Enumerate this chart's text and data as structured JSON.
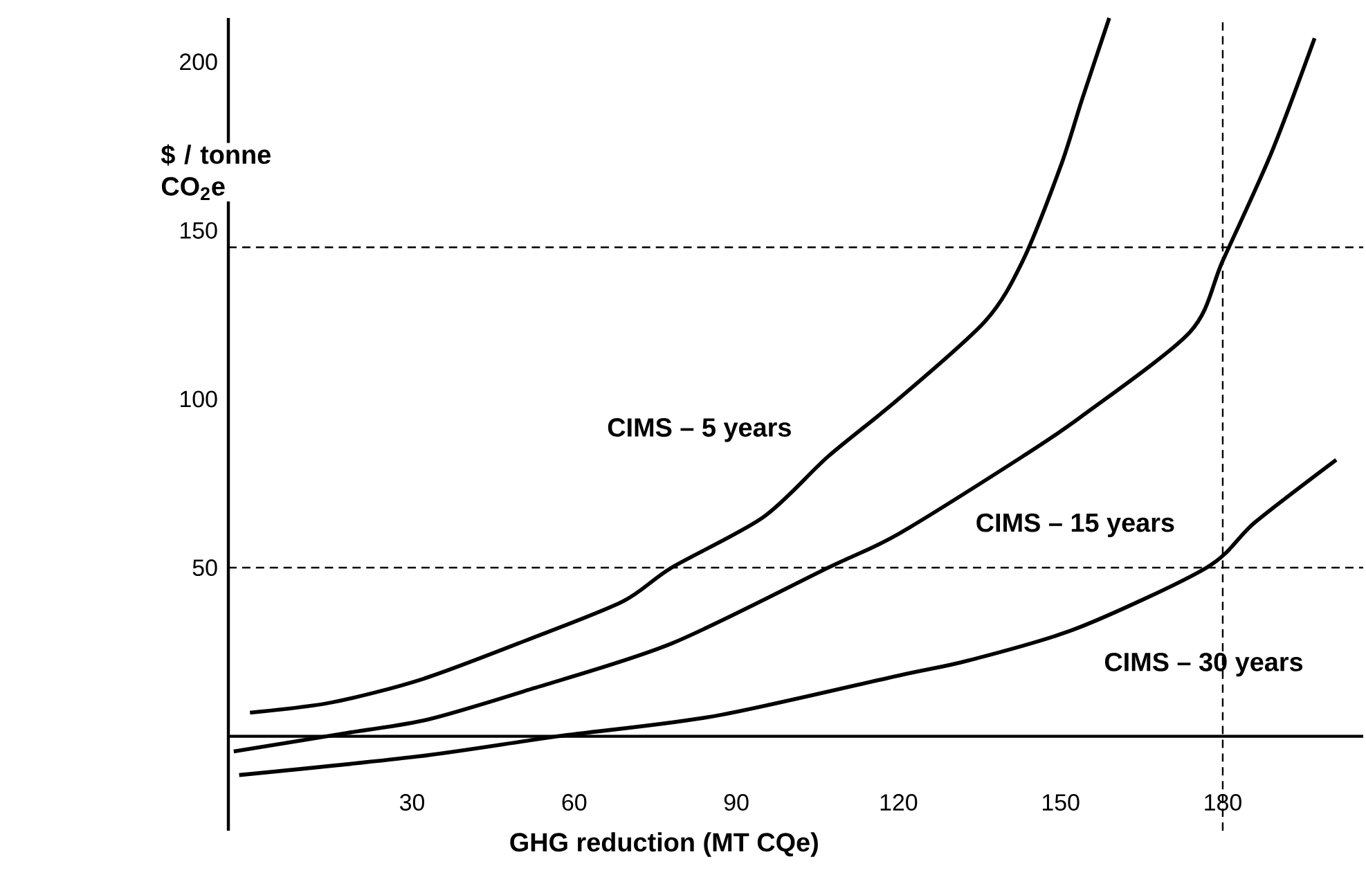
{
  "chart_data": {
    "type": "line",
    "xlabel": "GHG reduction (MT CQe)",
    "ylabel": "$ / tonne CO$_{2}$e",
    "xlim": [
      -4,
      206
    ],
    "ylim": [
      -28,
      213
    ],
    "xticks": [
      30,
      60,
      90,
      120,
      150,
      180
    ],
    "yticks": [
      50,
      100,
      150,
      200
    ],
    "marker": "none",
    "line_style": "solid",
    "series": [
      {
        "name": "CIMS – 5 years",
        "color": "#000000",
        "x": [
          0,
          15,
          32,
          52,
          69,
          78,
          95,
          107,
          120,
          136,
          143,
          150,
          154,
          159
        ],
        "values": [
          7,
          10,
          17,
          29,
          40,
          50,
          65,
          83,
          100,
          123,
          141,
          169,
          189,
          213
        ]
      },
      {
        "name": "CIMS – 15 years",
        "color": "#000000",
        "x": [
          -3,
          18,
          33,
          52,
          78,
          107,
          120,
          143,
          154,
          174,
          180,
          189,
          197
        ],
        "values": [
          -4.5,
          1,
          5,
          14,
          27.5,
          50,
          60,
          83,
          95,
          120,
          141,
          173,
          207
        ]
      },
      {
        "name": "CIMS – 30 years",
        "color": "#000000",
        "x": [
          -2,
          31,
          57,
          86,
          120,
          133,
          153,
          177,
          186,
          201
        ],
        "values": [
          -11.5,
          -6,
          0,
          6,
          18,
          22.5,
          32,
          50,
          63.5,
          82
        ]
      }
    ],
    "ref_lines": [
      {
        "axis": "y",
        "value": 50,
        "color": "#000000",
        "line_style": "dashed"
      },
      {
        "axis": "y",
        "value": 145,
        "color": "#000000",
        "line_style": "dashed"
      },
      {
        "axis": "x",
        "value": 180,
        "color": "#000000",
        "line_style": "dashed"
      }
    ]
  }
}
